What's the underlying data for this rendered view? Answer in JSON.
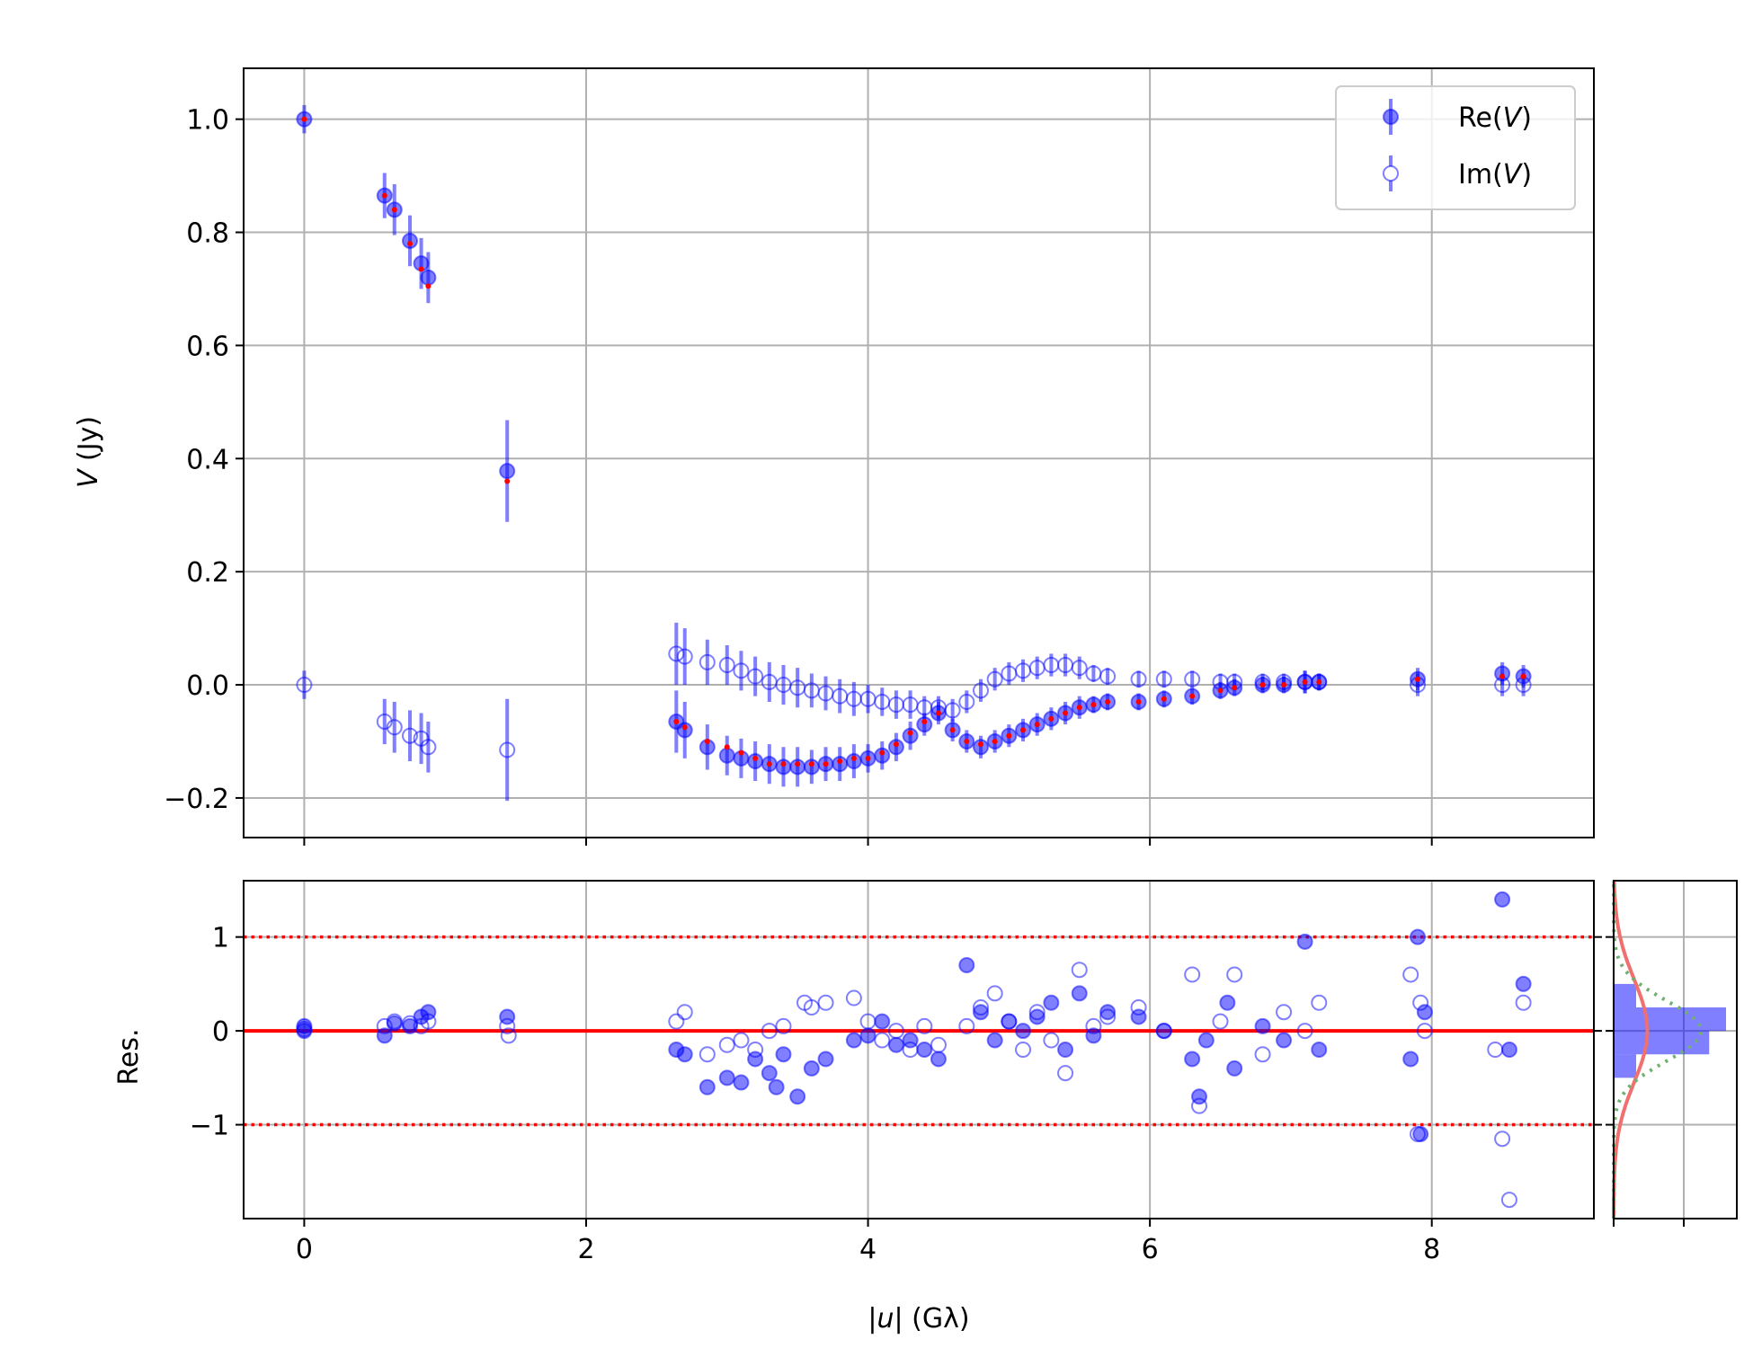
{
  "chart_data": {
    "type": "scatter",
    "panels": {
      "main": {
        "ylabel_var": "V",
        "ylabel_unit": " (Jy)",
        "ylim": [
          -0.27,
          1.09
        ],
        "yticks": [
          1.0,
          0.8,
          0.6,
          0.4,
          0.2,
          0.0,
          -0.2
        ],
        "ytick_labels": [
          "1.0",
          "0.8",
          "0.6",
          "0.4",
          "0.2",
          "0.0",
          "−0.2"
        ],
        "grid": true,
        "legend": {
          "placement": "top-right",
          "entries": [
            {
              "prefix": "Re(",
              "var": "V",
              "suffix": ")",
              "marker": "filled"
            },
            {
              "prefix": "Im(",
              "var": "V",
              "suffix": ")",
              "marker": "open"
            }
          ]
        }
      },
      "residual": {
        "ylabel": "Res.",
        "ylim": [
          -2.0,
          1.6
        ],
        "yticks": [
          1,
          0,
          -1
        ],
        "ytick_labels": [
          "1",
          "0",
          "−1"
        ],
        "reference_lines": [
          {
            "y": 0,
            "style": "solid",
            "color": "#ff0000"
          },
          {
            "y": 1,
            "style": "dotted",
            "color": "#ff0000"
          },
          {
            "y": -1,
            "style": "dotted",
            "color": "#ff0000"
          }
        ]
      },
      "histogram": {
        "bins_y": [
          -0.5,
          -0.25,
          0.0,
          0.25,
          0.5
        ],
        "counts": [
          0.2,
          0.85,
          1.0,
          0.2
        ],
        "gaussian_fit_color": "#f07070",
        "normal_ref_color": "#70b070"
      }
    },
    "xlabel_prefix": "|",
    "xlabel_var": "u",
    "xlabel_suffix": "| (Gλ)",
    "xlim": [
      -0.43,
      9.15
    ],
    "xticks": [
      0,
      2,
      4,
      6,
      8
    ],
    "xtick_labels": [
      "0",
      "2",
      "4",
      "6",
      "8"
    ],
    "series": [
      {
        "name": "Re(V)",
        "marker": "filled",
        "color": "#0000ff",
        "x": [
          0.0,
          0.57,
          0.64,
          0.75,
          0.83,
          0.88,
          1.44,
          2.64,
          2.7,
          2.86,
          3.0,
          3.1,
          3.2,
          3.3,
          3.4,
          3.5,
          3.6,
          3.7,
          3.8,
          3.9,
          4.0,
          4.1,
          4.2,
          4.3,
          4.4,
          4.5,
          4.6,
          4.7,
          4.8,
          4.9,
          5.0,
          5.1,
          5.2,
          5.3,
          5.4,
          5.5,
          5.6,
          5.7,
          5.92,
          6.1,
          6.3,
          6.5,
          6.6,
          6.8,
          6.95,
          7.1,
          7.2,
          7.9,
          8.5,
          8.65
        ],
        "y": [
          1.0,
          0.865,
          0.84,
          0.785,
          0.745,
          0.72,
          0.378,
          -0.065,
          -0.08,
          -0.11,
          -0.125,
          -0.13,
          -0.135,
          -0.14,
          -0.145,
          -0.145,
          -0.145,
          -0.14,
          -0.14,
          -0.135,
          -0.13,
          -0.125,
          -0.11,
          -0.09,
          -0.07,
          -0.05,
          -0.08,
          -0.1,
          -0.11,
          -0.1,
          -0.09,
          -0.08,
          -0.07,
          -0.06,
          -0.05,
          -0.04,
          -0.035,
          -0.03,
          -0.03,
          -0.025,
          -0.02,
          -0.01,
          -0.005,
          0.0,
          0.0,
          0.005,
          0.005,
          0.01,
          0.02,
          0.015
        ],
        "err": [
          0.025,
          0.04,
          0.045,
          0.045,
          0.045,
          0.045,
          0.09,
          0.055,
          0.05,
          0.04,
          0.035,
          0.035,
          0.035,
          0.035,
          0.035,
          0.035,
          0.03,
          0.03,
          0.03,
          0.03,
          0.025,
          0.025,
          0.025,
          0.025,
          0.02,
          0.02,
          0.02,
          0.02,
          0.02,
          0.02,
          0.02,
          0.02,
          0.02,
          0.02,
          0.02,
          0.02,
          0.015,
          0.015,
          0.015,
          0.015,
          0.015,
          0.015,
          0.015,
          0.015,
          0.015,
          0.02,
          0.015,
          0.02,
          0.02,
          0.02
        ]
      },
      {
        "name": "Im(V)",
        "marker": "open",
        "color": "#0000ff",
        "x": [
          0.0,
          0.57,
          0.64,
          0.75,
          0.83,
          0.88,
          1.44,
          2.64,
          2.7,
          2.86,
          3.0,
          3.1,
          3.2,
          3.3,
          3.4,
          3.5,
          3.6,
          3.7,
          3.8,
          3.9,
          4.0,
          4.1,
          4.2,
          4.3,
          4.4,
          4.5,
          4.6,
          4.7,
          4.8,
          4.9,
          5.0,
          5.1,
          5.2,
          5.3,
          5.4,
          5.5,
          5.6,
          5.7,
          5.92,
          6.1,
          6.3,
          6.5,
          6.6,
          6.8,
          6.95,
          7.1,
          7.2,
          7.9,
          8.5,
          8.65
        ],
        "y": [
          0.0,
          -0.065,
          -0.075,
          -0.09,
          -0.095,
          -0.11,
          -0.115,
          0.055,
          0.05,
          0.04,
          0.035,
          0.025,
          0.015,
          0.005,
          0.0,
          -0.005,
          -0.01,
          -0.015,
          -0.02,
          -0.025,
          -0.025,
          -0.03,
          -0.035,
          -0.035,
          -0.04,
          -0.04,
          -0.045,
          -0.03,
          -0.01,
          0.01,
          0.02,
          0.025,
          0.03,
          0.035,
          0.035,
          0.03,
          0.02,
          0.015,
          0.01,
          0.01,
          0.01,
          0.005,
          0.005,
          0.005,
          0.005,
          0.005,
          0.005,
          0.0,
          0.0,
          0.0
        ],
        "err": [
          0.025,
          0.04,
          0.045,
          0.045,
          0.045,
          0.045,
          0.09,
          0.055,
          0.05,
          0.04,
          0.035,
          0.035,
          0.035,
          0.035,
          0.035,
          0.035,
          0.03,
          0.03,
          0.03,
          0.03,
          0.025,
          0.025,
          0.025,
          0.025,
          0.02,
          0.02,
          0.02,
          0.02,
          0.02,
          0.02,
          0.02,
          0.02,
          0.02,
          0.02,
          0.02,
          0.02,
          0.015,
          0.015,
          0.015,
          0.015,
          0.015,
          0.015,
          0.015,
          0.015,
          0.015,
          0.02,
          0.015,
          0.02,
          0.02,
          0.02
        ]
      },
      {
        "name": "Model",
        "marker": "dot",
        "color": "#ff0000",
        "x": [
          0.0,
          0.57,
          0.64,
          0.75,
          0.83,
          0.88,
          1.44,
          2.64,
          2.7,
          2.86,
          3.0,
          3.1,
          3.2,
          3.3,
          3.4,
          3.5,
          3.6,
          3.7,
          3.8,
          3.9,
          4.0,
          4.1,
          4.2,
          4.3,
          4.4,
          4.5,
          4.6,
          4.7,
          4.8,
          4.9,
          5.0,
          5.1,
          5.2,
          5.3,
          5.4,
          5.5,
          5.6,
          5.7,
          5.92,
          6.1,
          6.3,
          6.5,
          6.6,
          6.8,
          6.95,
          7.1,
          7.2,
          7.9,
          8.5,
          8.65
        ],
        "y": [
          1.0,
          0.865,
          0.84,
          0.78,
          0.735,
          0.705,
          0.36,
          -0.065,
          -0.075,
          -0.1,
          -0.11,
          -0.12,
          -0.13,
          -0.14,
          -0.14,
          -0.14,
          -0.14,
          -0.14,
          -0.135,
          -0.13,
          -0.13,
          -0.12,
          -0.105,
          -0.085,
          -0.065,
          -0.05,
          -0.08,
          -0.1,
          -0.105,
          -0.1,
          -0.09,
          -0.08,
          -0.07,
          -0.06,
          -0.05,
          -0.04,
          -0.035,
          -0.03,
          -0.03,
          -0.025,
          -0.02,
          -0.01,
          -0.005,
          0.0,
          0.0,
          0.005,
          0.005,
          0.01,
          0.015,
          0.015
        ]
      }
    ],
    "residuals": [
      {
        "name": "Re(V) residuals",
        "marker": "filled",
        "x": [
          0.0,
          0.0,
          0.57,
          0.64,
          0.75,
          0.83,
          0.88,
          1.44,
          2.64,
          2.7,
          2.86,
          3.0,
          3.1,
          3.2,
          3.3,
          3.35,
          3.4,
          3.5,
          3.6,
          3.7,
          3.9,
          4.0,
          4.1,
          4.2,
          4.3,
          4.4,
          4.5,
          4.7,
          4.8,
          4.9,
          5.0,
          5.1,
          5.2,
          5.3,
          5.4,
          5.5,
          5.6,
          5.7,
          5.92,
          6.1,
          6.3,
          6.35,
          6.4,
          6.55,
          6.6,
          6.8,
          6.95,
          7.1,
          7.2,
          7.85,
          7.9,
          7.92,
          7.95,
          8.5,
          8.55,
          8.65
        ],
        "y": [
          0.05,
          0.0,
          -0.05,
          0.08,
          0.05,
          0.15,
          0.2,
          0.15,
          -0.2,
          -0.25,
          -0.6,
          -0.5,
          -0.55,
          -0.3,
          -0.45,
          -0.6,
          -0.25,
          -0.7,
          -0.4,
          -0.3,
          -0.1,
          -0.05,
          0.1,
          -0.15,
          -0.1,
          -0.2,
          -0.3,
          0.7,
          0.2,
          -0.1,
          0.1,
          0.0,
          0.15,
          0.3,
          -0.2,
          0.4,
          -0.05,
          0.2,
          0.15,
          0.0,
          -0.3,
          -0.7,
          -0.1,
          0.3,
          -0.4,
          0.05,
          -0.1,
          0.95,
          -0.2,
          -0.3,
          1.0,
          -1.1,
          0.2,
          1.4,
          -0.2,
          0.5
        ]
      },
      {
        "name": "Im(V) residuals",
        "marker": "open",
        "x": [
          0.0,
          0.57,
          0.64,
          0.75,
          0.83,
          0.88,
          1.44,
          1.45,
          2.64,
          2.7,
          2.86,
          3.0,
          3.1,
          3.2,
          3.3,
          3.4,
          3.55,
          3.6,
          3.7,
          3.9,
          4.0,
          4.1,
          4.2,
          4.3,
          4.4,
          4.5,
          4.7,
          4.8,
          4.9,
          5.0,
          5.1,
          5.2,
          5.3,
          5.4,
          5.5,
          5.6,
          5.7,
          5.92,
          6.1,
          6.3,
          6.35,
          6.5,
          6.6,
          6.8,
          6.95,
          7.1,
          7.2,
          7.85,
          7.9,
          7.92,
          7.95,
          8.45,
          8.5,
          8.55,
          8.65
        ],
        "y": [
          0.02,
          0.05,
          0.1,
          0.08,
          0.05,
          0.1,
          0.05,
          -0.05,
          0.1,
          0.2,
          -0.25,
          -0.15,
          -0.1,
          -0.2,
          0.0,
          0.05,
          0.3,
          0.25,
          0.3,
          0.35,
          0.1,
          -0.1,
          0.0,
          -0.2,
          0.05,
          -0.15,
          0.05,
          0.25,
          0.4,
          0.1,
          -0.2,
          0.2,
          -0.1,
          -0.45,
          0.65,
          0.05,
          0.15,
          0.25,
          0.0,
          0.6,
          -0.8,
          0.1,
          0.6,
          -0.25,
          0.2,
          0.0,
          0.3,
          0.6,
          -1.1,
          0.3,
          0.0,
          -0.2,
          -1.15,
          -1.8,
          0.3
        ]
      }
    ]
  }
}
